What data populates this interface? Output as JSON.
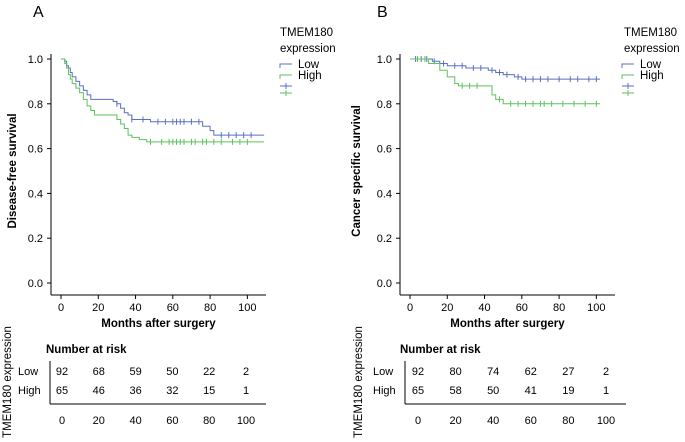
{
  "chart_data": [
    {
      "type": "line",
      "panel": "A",
      "title": "",
      "xlabel": "Months after surgery",
      "ylabel": "Disease-free survival",
      "xlim": [
        0,
        110
      ],
      "ylim": [
        0,
        1.0
      ],
      "x_ticks": [
        0,
        20,
        40,
        60,
        80,
        100
      ],
      "y_ticks": [
        "0.0",
        "0.2",
        "0.4",
        "0.6",
        "0.8",
        "1.0"
      ],
      "legend": {
        "title_line1": "TMEM180",
        "title_line2": "expression",
        "entries": [
          "Low",
          "High"
        ]
      },
      "colors": {
        "Low": "#5b6fc2",
        "High": "#5cc25c"
      },
      "series": [
        {
          "name": "Low",
          "steps": [
            [
              0,
              1.0
            ],
            [
              2,
              0.99
            ],
            [
              3,
              0.97
            ],
            [
              4,
              0.96
            ],
            [
              5,
              0.94
            ],
            [
              6,
              0.92
            ],
            [
              8,
              0.9
            ],
            [
              10,
              0.88
            ],
            [
              12,
              0.86
            ],
            [
              14,
              0.84
            ],
            [
              16,
              0.82
            ],
            [
              28,
              0.81
            ],
            [
              30,
              0.8
            ],
            [
              32,
              0.78
            ],
            [
              34,
              0.76
            ],
            [
              36,
              0.75
            ],
            [
              38,
              0.73
            ],
            [
              48,
              0.72
            ],
            [
              76,
              0.7
            ],
            [
              80,
              0.68
            ],
            [
              82,
              0.66
            ],
            [
              109,
              0.66
            ]
          ],
          "censored_x": [
            30,
            38,
            44,
            52,
            56,
            60,
            62,
            64,
            66,
            70,
            74,
            86,
            90,
            94,
            98,
            102
          ]
        },
        {
          "name": "High",
          "steps": [
            [
              0,
              1.0
            ],
            [
              2,
              0.98
            ],
            [
              3,
              0.96
            ],
            [
              4,
              0.93
            ],
            [
              5,
              0.91
            ],
            [
              6,
              0.89
            ],
            [
              8,
              0.87
            ],
            [
              10,
              0.85
            ],
            [
              12,
              0.82
            ],
            [
              14,
              0.79
            ],
            [
              16,
              0.77
            ],
            [
              18,
              0.75
            ],
            [
              30,
              0.73
            ],
            [
              32,
              0.71
            ],
            [
              34,
              0.69
            ],
            [
              36,
              0.66
            ],
            [
              38,
              0.65
            ],
            [
              42,
              0.64
            ],
            [
              46,
              0.63
            ],
            [
              109,
              0.63
            ]
          ],
          "censored_x": [
            48,
            54,
            58,
            60,
            62,
            64,
            66,
            70,
            72,
            76,
            78,
            82,
            86,
            92,
            96,
            100
          ]
        }
      ],
      "risk_table": {
        "header": "Number at risk",
        "side_label": "TMEM180 expression",
        "columns": [
          "0",
          "20",
          "40",
          "60",
          "80",
          "100"
        ],
        "rows": [
          {
            "group": "Low",
            "values": [
              "92",
              "68",
              "59",
              "50",
              "22",
              "2"
            ]
          },
          {
            "group": "High",
            "values": [
              "65",
              "46",
              "36",
              "32",
              "15",
              "1"
            ]
          }
        ]
      }
    },
    {
      "type": "line",
      "panel": "B",
      "title": "",
      "xlabel": "Months after surgery",
      "ylabel": "Cancer specific survival",
      "xlim": [
        0,
        110
      ],
      "ylim": [
        0,
        1.0
      ],
      "x_ticks": [
        0,
        20,
        40,
        60,
        80,
        100
      ],
      "y_ticks": [
        "0.0",
        "0.2",
        "0.4",
        "0.6",
        "0.8",
        "1.0"
      ],
      "legend": {
        "title_line1": "TMEM180",
        "title_line2": "expression",
        "entries": [
          "Low",
          "High"
        ]
      },
      "colors": {
        "Low": "#5b6fc2",
        "High": "#5cc25c"
      },
      "series": [
        {
          "name": "Low",
          "steps": [
            [
              0,
              1.0
            ],
            [
              12,
              0.99
            ],
            [
              16,
              0.98
            ],
            [
              20,
              0.97
            ],
            [
              30,
              0.96
            ],
            [
              42,
              0.95
            ],
            [
              46,
              0.94
            ],
            [
              50,
              0.93
            ],
            [
              56,
              0.92
            ],
            [
              60,
              0.91
            ],
            [
              102,
              0.91
            ]
          ],
          "censored_x": [
            3,
            6,
            9,
            13,
            18,
            24,
            28,
            34,
            38,
            44,
            48,
            52,
            58,
            62,
            66,
            70,
            74,
            80,
            86,
            90,
            96,
            100
          ]
        },
        {
          "name": "High",
          "steps": [
            [
              0,
              1.0
            ],
            [
              10,
              0.98
            ],
            [
              16,
              0.95
            ],
            [
              20,
              0.92
            ],
            [
              24,
              0.89
            ],
            [
              26,
              0.88
            ],
            [
              44,
              0.84
            ],
            [
              46,
              0.82
            ],
            [
              50,
              0.8
            ],
            [
              102,
              0.8
            ]
          ],
          "censored_x": [
            4,
            8,
            28,
            32,
            36,
            48,
            54,
            58,
            62,
            66,
            70,
            72,
            76,
            82,
            88,
            94,
            100
          ]
        }
      ],
      "risk_table": {
        "header": "Number at risk",
        "side_label": "TMEM180 expression",
        "columns": [
          "0",
          "20",
          "40",
          "60",
          "80",
          "100"
        ],
        "rows": [
          {
            "group": "Low",
            "values": [
              "92",
              "80",
              "74",
              "62",
              "27",
              "2"
            ]
          },
          {
            "group": "High",
            "values": [
              "65",
              "58",
              "50",
              "41",
              "19",
              "1"
            ]
          }
        ]
      }
    }
  ]
}
